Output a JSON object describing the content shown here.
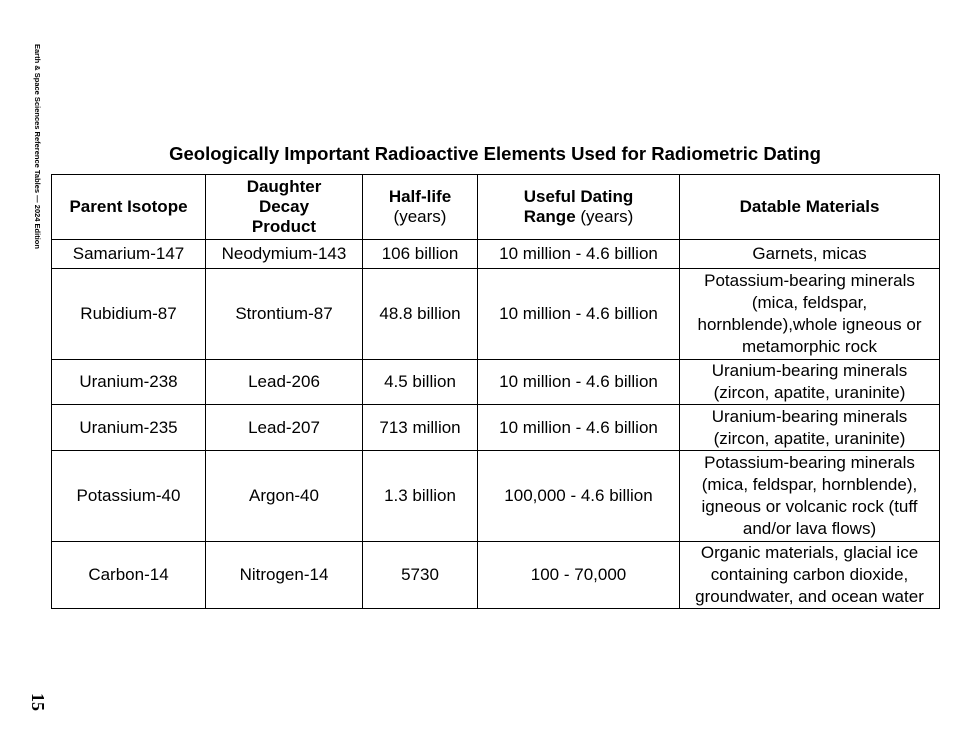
{
  "side_text": "Earth & Space Sciences Reference Tables — 2024 Edition",
  "page_number": "15",
  "title": "Geologically Important Radioactive Elements Used for Radiometric Dating",
  "headers": [
    {
      "bold": "Parent Isotope",
      "unit": ""
    },
    {
      "bold": "Daughter Decay Product",
      "unit": ""
    },
    {
      "bold": "Half-life",
      "unit": "(years)"
    },
    {
      "bold": "Useful Dating Range",
      "unit": "(years)"
    },
    {
      "bold": "Datable Materials",
      "unit": ""
    }
  ],
  "rows": [
    [
      "Samarium-147",
      "Neodymium-143",
      "106 billion",
      "10 million - 4.6 billion",
      "Garnets, micas"
    ],
    [
      "Rubidium-87",
      "Strontium-87",
      "48.8 billion",
      "10 million - 4.6 billion",
      "Potassium-bearing minerals (mica, feldspar, hornblende),whole igneous or metamorphic rock"
    ],
    [
      "Uranium-238",
      "Lead-206",
      "4.5 billion",
      "10 million - 4.6 billion",
      "Uranium-bearing minerals (zircon, apatite, uraninite)"
    ],
    [
      "Uranium-235",
      "Lead-207",
      "713 million",
      "10 million - 4.6 billion",
      "Uranium-bearing minerals (zircon, apatite, uraninite)"
    ],
    [
      "Potassium-40",
      "Argon-40",
      "1.3 billion",
      "100,000 - 4.6 billion",
      "Potassium-bearing minerals (mica, feldspar, hornblende), igneous or volcanic rock (tuff and/or lava flows)"
    ],
    [
      "Carbon-14",
      "Nitrogen-14",
      "5730",
      "100 - 70,000",
      "Organic materials, glacial ice containing carbon dioxide, groundwater, and ocean water"
    ]
  ]
}
